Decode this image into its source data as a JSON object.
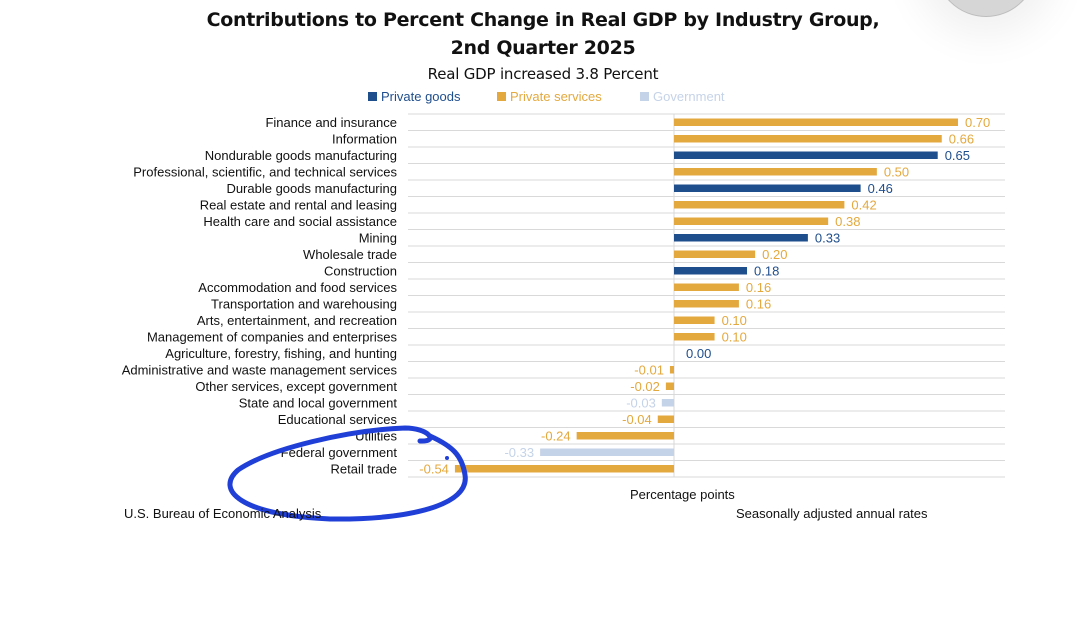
{
  "header": {
    "title_line1": "Contributions to Percent Change in Real GDP by Industry Group,",
    "title_line2": "2nd Quarter 2025",
    "subtitle": "Real GDP increased 3.8 Percent"
  },
  "legend": [
    {
      "name": "Private goods",
      "color": "#1f4e8c"
    },
    {
      "name": "Private services",
      "color": "#e3a93f"
    },
    {
      "name": "Government",
      "color": "#c5d3e8"
    }
  ],
  "footer": {
    "xlabel": "Percentage points",
    "source": "U.S. Bureau of Economic Analysis",
    "note": "Seasonally adjusted annual rates"
  },
  "annotation": {
    "type": "hand-drawn-circle",
    "color": "#1f3fd6",
    "circled_categories": [
      "Utilities",
      "Federal government",
      "Retail trade"
    ]
  },
  "chart_data": {
    "type": "bar",
    "orientation": "horizontal",
    "title": "Contributions to Percent Change in Real GDP by Industry Group, 2nd Quarter 2025",
    "subtitle": "Real GDP increased 3.8 Percent",
    "xlabel": "Percentage points",
    "ylabel": "",
    "xlim": [
      -0.65,
      0.82
    ],
    "grid": true,
    "legend_position": "top-center",
    "series_colors": {
      "Private goods": "#1f4e8c",
      "Private services": "#e3a93f",
      "Government": "#c5d3e8"
    },
    "label_colors": {
      "Private goods": "#1f4e8c",
      "Private services": "#e3a93f",
      "Government": "#c5d3e8"
    },
    "categories": [
      "Finance and insurance",
      "Information",
      "Nondurable goods manufacturing",
      "Professional, scientific, and technical services",
      "Durable goods manufacturing",
      "Real estate and rental and leasing",
      "Health care and social assistance",
      "Mining",
      "Wholesale trade",
      "Construction",
      "Accommodation and food services",
      "Transportation and warehousing",
      "Arts, entertainment, and recreation",
      "Management of companies and enterprises",
      "Agriculture, forestry, fishing, and hunting",
      "Administrative and waste management services",
      "Other services, except government",
      "State and local government",
      "Educational services",
      "Utilities",
      "Federal government",
      "Retail trade"
    ],
    "values": [
      0.7,
      0.66,
      0.65,
      0.5,
      0.46,
      0.42,
      0.38,
      0.33,
      0.2,
      0.18,
      0.16,
      0.16,
      0.1,
      0.1,
      0.0,
      -0.01,
      -0.02,
      -0.03,
      -0.04,
      -0.24,
      -0.33,
      -0.54
    ],
    "value_labels": [
      "0.70",
      "0.66",
      "0.65",
      "0.50",
      "0.46",
      "0.42",
      "0.38",
      "0.33",
      "0.20",
      "0.18",
      "0.16",
      "0.16",
      "0.10",
      "0.10",
      "0.00",
      "-0.01",
      "-0.02",
      "-0.03",
      "-0.04",
      "-0.24",
      "-0.33",
      "-0.54"
    ],
    "groups": [
      "Private services",
      "Private services",
      "Private goods",
      "Private services",
      "Private goods",
      "Private services",
      "Private services",
      "Private goods",
      "Private services",
      "Private goods",
      "Private services",
      "Private services",
      "Private services",
      "Private services",
      "Private goods",
      "Private services",
      "Private services",
      "Government",
      "Private services",
      "Private services",
      "Government",
      "Private services"
    ]
  }
}
